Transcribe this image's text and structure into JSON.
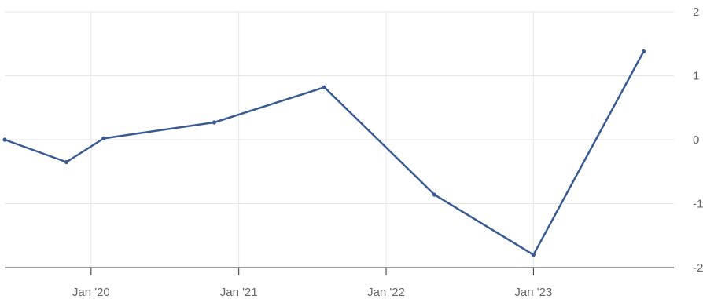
{
  "chart_data": {
    "type": "line",
    "title": "",
    "xlabel": "",
    "ylabel": "",
    "x_ticks": [
      "Jan '20",
      "Jan '21",
      "Jan '22",
      "Jan '23"
    ],
    "y_ticks": [
      "2",
      "1",
      "0",
      "-1",
      "-2"
    ],
    "ylim": [
      -2,
      2
    ],
    "xlim": [
      "2019-06-01",
      "2023-12-15"
    ],
    "grid": true,
    "legend": "none",
    "series": [
      {
        "x": [
          "2019-06-01",
          "2019-11-01",
          "2020-02-01",
          "2020-11-01",
          "2021-08-01",
          "2022-05-01",
          "2023-01-01",
          "2023-10-01"
        ],
        "y": [
          0.0,
          -0.35,
          0.02,
          0.27,
          0.82,
          -0.86,
          -1.8,
          1.38
        ],
        "color": "#3a5a92"
      }
    ]
  }
}
